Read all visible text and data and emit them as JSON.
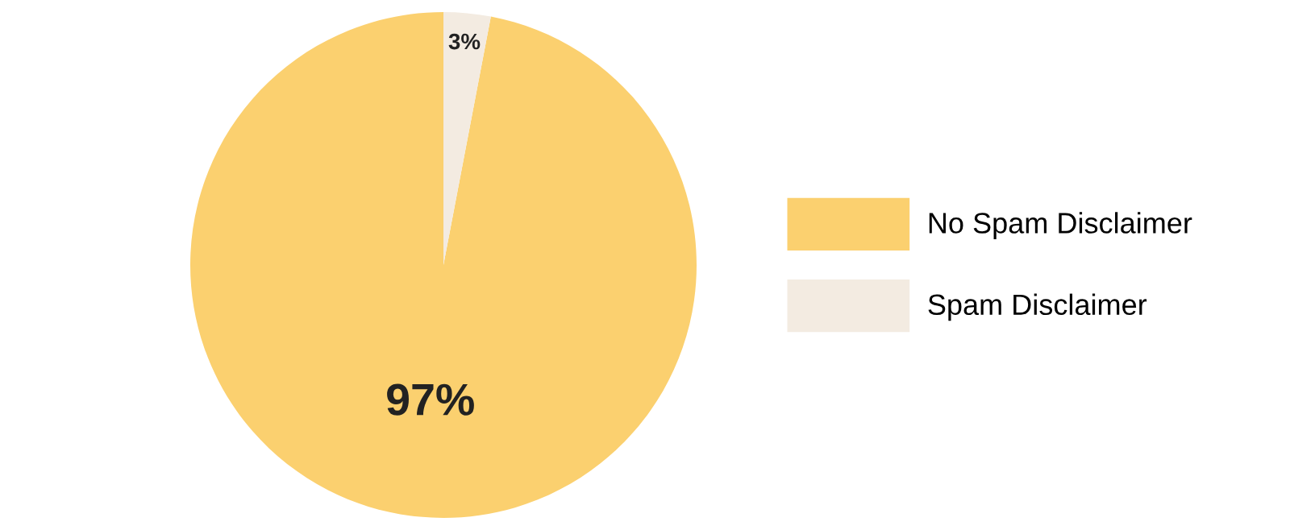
{
  "chart_data": {
    "type": "pie",
    "categories": [
      "No Spam Disclaimer",
      "Spam Disclaimer"
    ],
    "values": [
      97,
      3
    ],
    "colors": [
      "#fbd06f",
      "#f3ebe1"
    ],
    "value_labels": [
      "97%",
      "3%"
    ],
    "legend": "right"
  }
}
